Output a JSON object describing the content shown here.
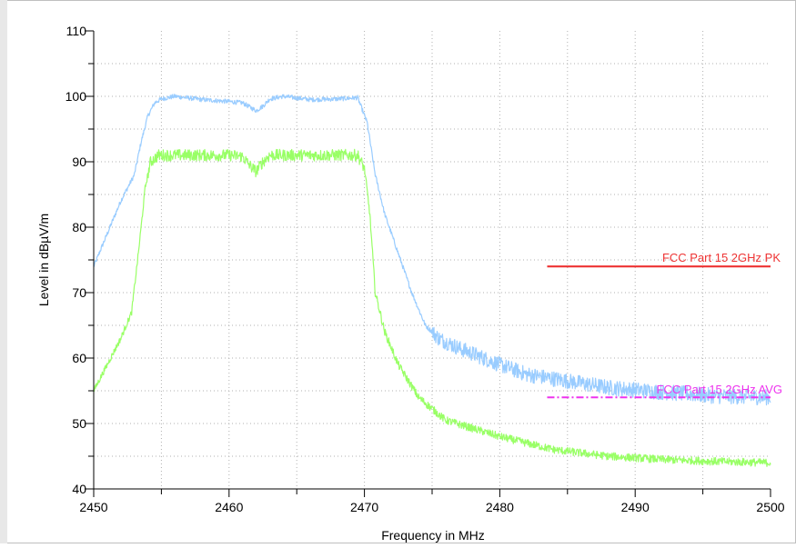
{
  "chart_data": {
    "type": "line",
    "xlabel": "Frequency in MHz",
    "ylabel": "Level in dBµV/m",
    "xlim": [
      2450,
      2500
    ],
    "ylim": [
      40,
      110
    ],
    "x_ticks": [
      "2450",
      "2460",
      "2470",
      "2480",
      "2490",
      "2500"
    ],
    "y_ticks": [
      "40",
      "50",
      "60",
      "70",
      "80",
      "90",
      "100",
      "110"
    ],
    "grid": true,
    "colors": {
      "peak_trace": "#99ccff",
      "avg_trace": "#99ff66",
      "pk_limit": "#ee3333",
      "avg_limit": "#ee33ee"
    },
    "series": [
      {
        "x": [
          2450,
          2451,
          2452,
          2453,
          2453.5,
          2454,
          2454.5,
          2455,
          2456,
          2458,
          2460,
          2461,
          2462,
          2462.5,
          2463,
          2464,
          2466,
          2468,
          2469.5,
          2470.2,
          2470.8,
          2471.5,
          2472.5,
          2473.5,
          2474.5,
          2475.5,
          2477,
          2480,
          2482,
          2485,
          2488,
          2492,
          2496,
          2500
        ],
        "values": [
          74,
          79,
          84,
          88,
          93,
          97,
          99,
          99.6,
          100,
          99.5,
          99.2,
          99,
          97.8,
          98.5,
          99.6,
          100,
          99.5,
          99.6,
          99.8,
          96,
          88,
          82,
          76,
          70,
          65,
          63,
          61.5,
          59,
          57.5,
          56.5,
          55.5,
          54.8,
          54.2,
          54
        ]
      },
      {
        "x": [
          2450,
          2451,
          2452,
          2452.8,
          2453.3,
          2453.8,
          2454.2,
          2454.8,
          2456,
          2458,
          2460,
          2461,
          2461.5,
          2462,
          2462.5,
          2463,
          2464,
          2466,
          2468,
          2469.5,
          2470,
          2470.4,
          2470.8,
          2471.5,
          2472.5,
          2474,
          2476,
          2480,
          2484,
          2488,
          2492,
          2496,
          2500
        ],
        "values": [
          55,
          59,
          63,
          67,
          76,
          86,
          90,
          91,
          91,
          91,
          91,
          90.8,
          89.5,
          88.5,
          90,
          91,
          91,
          91,
          91,
          91,
          89,
          82,
          70,
          64,
          59,
          54,
          50.5,
          48,
          46,
          45,
          44.5,
          44.2,
          44
        ]
      },
      {
        "name": "FCC Part 15 2GHz  PK",
        "x": [
          2483.5,
          2500
        ],
        "values": [
          74,
          74
        ]
      },
      {
        "name": "FCC Part 15 2GHz  AVG",
        "x": [
          2483.5,
          2500
        ],
        "values": [
          54,
          54
        ]
      }
    ]
  }
}
